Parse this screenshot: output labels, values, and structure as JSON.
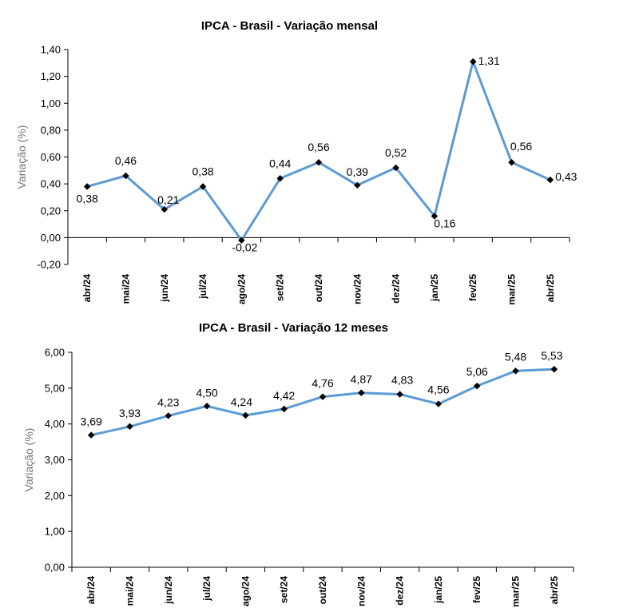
{
  "colors": {
    "series": "#5B9BD5",
    "marker": "#000000"
  },
  "chart_data": [
    {
      "type": "line",
      "title": "IPCA - Brasil - Variação mensal",
      "xlabel": "",
      "ylabel": "Variação (%)",
      "categories": [
        "abr/24",
        "mai/24",
        "jun/24",
        "jul/24",
        "ago/24",
        "set/24",
        "out/24",
        "nov/24",
        "dez/24",
        "jan/25",
        "fev/25",
        "mar/25",
        "abr/25"
      ],
      "series": [
        {
          "values": [
            0.38,
            0.46,
            0.21,
            0.38,
            -0.02,
            0.44,
            0.56,
            0.39,
            0.52,
            0.16,
            1.31,
            0.56,
            0.43
          ],
          "labels": [
            "0,38",
            "0,46",
            "0,21",
            "0,38",
            "-0,02",
            "0,44",
            "0,56",
            "0,39",
            "0,52",
            "0,16",
            "1,31",
            "0,56",
            "0,43"
          ]
        }
      ],
      "ylim": [
        -0.2,
        1.4
      ],
      "yticks": [
        -0.2,
        0,
        0.2,
        0.4,
        0.6,
        0.8,
        1.0,
        1.2,
        1.4
      ],
      "ytick_labels": [
        "-0,20",
        "0,00",
        "0,20",
        "0,40",
        "0,60",
        "0,80",
        "1,00",
        "1,20",
        "1,40"
      ],
      "grid": false,
      "legend": "none"
    },
    {
      "type": "line",
      "title": "IPCA - Brasil - Variação 12 meses",
      "xlabel": "",
      "ylabel": "Variação (%)",
      "categories": [
        "abr/24",
        "mai/24",
        "jun/24",
        "jul/24",
        "ago/24",
        "set/24",
        "out/24",
        "nov/24",
        "dez/24",
        "jan/25",
        "fev/25",
        "mar/25",
        "abr/25"
      ],
      "series": [
        {
          "values": [
            3.69,
            3.93,
            4.23,
            4.5,
            4.24,
            4.42,
            4.76,
            4.87,
            4.83,
            4.56,
            5.06,
            5.48,
            5.53
          ],
          "labels": [
            "3,69",
            "3,93",
            "4,23",
            "4,50",
            "4,24",
            "4,42",
            "4,76",
            "4,87",
            "4,83",
            "4,56",
            "5,06",
            "5,48",
            "5,53"
          ]
        }
      ],
      "ylim": [
        0,
        6
      ],
      "yticks": [
        0,
        1,
        2,
        3,
        4,
        5,
        6
      ],
      "ytick_labels": [
        "0,00",
        "1,00",
        "2,00",
        "3,00",
        "4,00",
        "5,00",
        "6,00"
      ],
      "grid": false,
      "legend": "none"
    }
  ]
}
